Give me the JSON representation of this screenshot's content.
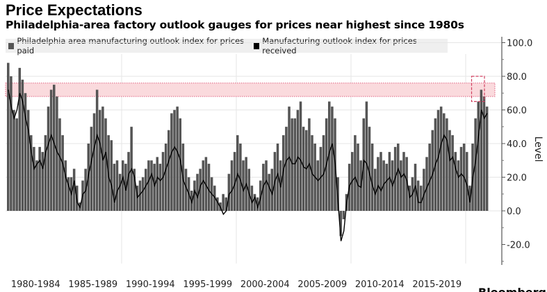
{
  "title": "Price Expectations",
  "subtitle": "Philadelphia-area factory outlook gauges for prices near highest since 1980s",
  "brand": "Bloomberg",
  "chart_data": {
    "type": "bar+line",
    "ylabel": "Level",
    "ylim": [
      -31,
      104
    ],
    "yticks": [
      "100.0",
      "80.0",
      "60.0",
      "40.0",
      "20.0",
      "0.0",
      "-20.0"
    ],
    "ytick_values": [
      100,
      80,
      60,
      40,
      20,
      0,
      -20
    ],
    "xlim": [
      1980,
      2022
    ],
    "xtick_labels": [
      "1980-1984",
      "1985-1989",
      "1990-1994",
      "1995-1999",
      "2000-2004",
      "2005-2009",
      "2010-2014",
      "2015-2019"
    ],
    "grid": true,
    "legend_position": "top",
    "frequency": "quarterly",
    "start": "1980-Q1",
    "highlight_band": {
      "from": 68,
      "to": 76,
      "color": "#fadadd"
    },
    "highlight_box": {
      "x_from": 2021.0,
      "x_to": 2022.0,
      "y_from": 65,
      "y_to": 80
    },
    "series": [
      {
        "name": "Philadelphia area manufacturing outlook index for prices paid",
        "type": "bar",
        "color": "#555555",
        "values": [
          88,
          80,
          60,
          55,
          85,
          78,
          70,
          60,
          45,
          38,
          30,
          38,
          35,
          45,
          62,
          72,
          75,
          68,
          55,
          45,
          30,
          20,
          20,
          25,
          15,
          5,
          18,
          25,
          40,
          50,
          58,
          72,
          60,
          62,
          55,
          45,
          42,
          28,
          30,
          22,
          30,
          28,
          35,
          50,
          25,
          15,
          18,
          20,
          25,
          30,
          30,
          28,
          32,
          28,
          35,
          40,
          48,
          58,
          60,
          62,
          55,
          40,
          25,
          20,
          12,
          18,
          22,
          25,
          30,
          32,
          28,
          20,
          15,
          8,
          5,
          10,
          8,
          22,
          30,
          35,
          45,
          40,
          30,
          32,
          25,
          15,
          10,
          8,
          18,
          28,
          30,
          22,
          25,
          35,
          40,
          30,
          45,
          50,
          62,
          55,
          55,
          60,
          65,
          50,
          48,
          55,
          45,
          40,
          30,
          38,
          45,
          55,
          65,
          62,
          55,
          20,
          -15,
          -5,
          10,
          28,
          35,
          45,
          40,
          30,
          55,
          65,
          50,
          40,
          25,
          32,
          35,
          30,
          28,
          35,
          30,
          38,
          40,
          30,
          35,
          32,
          15,
          20,
          28,
          18,
          15,
          25,
          32,
          40,
          48,
          55,
          60,
          62,
          58,
          55,
          48,
          45,
          35,
          30,
          38,
          40,
          35,
          15,
          40,
          55,
          65,
          72,
          68,
          62
        ]
      },
      {
        "name": "Manufacturing outlook index for prices received",
        "type": "line",
        "color": "#000000",
        "values": [
          72,
          62,
          55,
          60,
          70,
          65,
          55,
          48,
          35,
          25,
          28,
          30,
          25,
          35,
          40,
          45,
          40,
          35,
          32,
          28,
          20,
          15,
          10,
          18,
          5,
          2,
          10,
          12,
          22,
          30,
          38,
          45,
          40,
          30,
          35,
          20,
          15,
          5,
          12,
          15,
          20,
          12,
          22,
          25,
          20,
          8,
          10,
          12,
          15,
          18,
          22,
          15,
          20,
          18,
          20,
          25,
          30,
          35,
          38,
          35,
          30,
          18,
          14,
          10,
          5,
          12,
          8,
          15,
          18,
          15,
          12,
          10,
          8,
          5,
          2,
          -2,
          0,
          10,
          12,
          16,
          22,
          18,
          12,
          16,
          10,
          5,
          8,
          2,
          8,
          15,
          18,
          14,
          10,
          18,
          22,
          14,
          25,
          30,
          32,
          28,
          28,
          32,
          30,
          26,
          25,
          28,
          22,
          20,
          18,
          20,
          22,
          28,
          35,
          40,
          28,
          5,
          -18,
          -12,
          5,
          15,
          18,
          20,
          15,
          14,
          30,
          28,
          22,
          15,
          10,
          15,
          12,
          16,
          18,
          20,
          15,
          20,
          25,
          20,
          22,
          18,
          8,
          10,
          15,
          5,
          5,
          10,
          14,
          18,
          22,
          28,
          32,
          40,
          45,
          42,
          30,
          32,
          25,
          20,
          22,
          20,
          15,
          5,
          20,
          30,
          45,
          60,
          55,
          58
        ]
      }
    ]
  }
}
